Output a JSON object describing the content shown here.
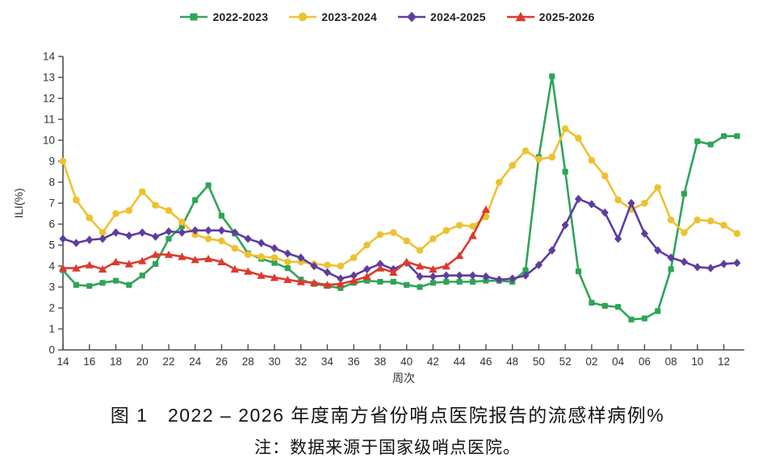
{
  "figure": {
    "caption_line1": "图 1　2022 – 2026 年度南方省份哨点医院报告的流感样病例%",
    "caption_line2": "注：数据来源于国家级哨点医院。"
  },
  "chart_data": {
    "type": "line",
    "title": "",
    "xlabel": "周次",
    "ylabel": "ILI(%)",
    "ylim": [
      0,
      14
    ],
    "ytick_step": 1,
    "grid": false,
    "legend_position": "top-center",
    "axis_color": "#4d4d4d",
    "x_categories": [
      "14",
      "15",
      "16",
      "17",
      "18",
      "19",
      "20",
      "21",
      "22",
      "23",
      "24",
      "25",
      "26",
      "27",
      "28",
      "29",
      "30",
      "31",
      "32",
      "33",
      "34",
      "35",
      "36",
      "37",
      "38",
      "39",
      "40",
      "41",
      "42",
      "43",
      "44",
      "45",
      "46",
      "47",
      "48",
      "49",
      "50",
      "51",
      "52",
      "01",
      "02",
      "03",
      "04",
      "05",
      "06",
      "07",
      "08",
      "09",
      "10",
      "11",
      "12",
      "13"
    ],
    "x_tick_labels": [
      "14",
      "16",
      "18",
      "20",
      "22",
      "24",
      "26",
      "28",
      "30",
      "32",
      "34",
      "36",
      "38",
      "40",
      "42",
      "44",
      "46",
      "48",
      "50",
      "52",
      "02",
      "04",
      "06",
      "08",
      "10",
      "12"
    ],
    "series": [
      {
        "name": "2022-2023",
        "color": "#2fa457",
        "marker": "square",
        "values": [
          3.8,
          3.1,
          3.05,
          3.2,
          3.3,
          3.1,
          3.55,
          4.1,
          5.3,
          5.9,
          7.15,
          7.85,
          6.4,
          5.55,
          4.6,
          4.35,
          4.15,
          3.9,
          3.35,
          3.15,
          3.05,
          2.95,
          3.2,
          3.3,
          3.25,
          3.25,
          3.1,
          3.0,
          3.2,
          3.25,
          3.25,
          3.25,
          3.3,
          3.3,
          3.25,
          3.8,
          9.2,
          13.05,
          8.5,
          3.75,
          2.25,
          2.1,
          2.05,
          1.45,
          1.5,
          1.85,
          3.85,
          7.45,
          9.95,
          9.8,
          10.2,
          10.2
        ]
      },
      {
        "name": "2023-2024",
        "color": "#edc231",
        "marker": "circle",
        "values": [
          9.0,
          7.15,
          6.3,
          5.6,
          6.5,
          6.65,
          7.55,
          6.9,
          6.65,
          6.1,
          5.5,
          5.3,
          5.2,
          4.85,
          4.55,
          4.45,
          4.4,
          4.2,
          4.2,
          4.1,
          4.05,
          4.0,
          4.4,
          5.0,
          5.5,
          5.6,
          5.2,
          4.75,
          5.3,
          5.7,
          5.95,
          5.9,
          6.35,
          8.0,
          8.8,
          9.5,
          9.1,
          9.2,
          10.55,
          10.1,
          9.05,
          8.3,
          7.15,
          6.7,
          7.0,
          7.75,
          6.2,
          5.6,
          6.2,
          6.15,
          5.95,
          5.55
        ]
      },
      {
        "name": "2024-2025",
        "color": "#5e3d9e",
        "marker": "diamond",
        "values": [
          5.3,
          5.1,
          5.25,
          5.3,
          5.6,
          5.45,
          5.6,
          5.4,
          5.65,
          5.6,
          5.7,
          5.7,
          5.7,
          5.6,
          5.3,
          5.1,
          4.85,
          4.6,
          4.4,
          4.0,
          3.7,
          3.4,
          3.55,
          3.85,
          4.1,
          3.85,
          4.15,
          3.5,
          3.5,
          3.55,
          3.55,
          3.55,
          3.5,
          3.35,
          3.4,
          3.55,
          4.05,
          4.75,
          5.95,
          7.2,
          6.95,
          6.55,
          5.3,
          7.0,
          5.55,
          4.75,
          4.4,
          4.2,
          3.95,
          3.9,
          4.1,
          4.15
        ]
      },
      {
        "name": "2025-2026",
        "color": "#dc3a2e",
        "marker": "triangle",
        "values": [
          3.9,
          3.9,
          4.05,
          3.85,
          4.2,
          4.1,
          4.25,
          4.55,
          4.55,
          4.45,
          4.3,
          4.35,
          4.2,
          3.85,
          3.75,
          3.55,
          3.45,
          3.35,
          3.25,
          3.2,
          3.1,
          3.15,
          3.3,
          3.5,
          3.9,
          3.7,
          4.2,
          4.0,
          3.85,
          4.0,
          4.5,
          5.45,
          6.7,
          null,
          null,
          null,
          null,
          null,
          null,
          null,
          null,
          null,
          null,
          null,
          null,
          null,
          null,
          null,
          null,
          null,
          null,
          null
        ]
      }
    ]
  }
}
